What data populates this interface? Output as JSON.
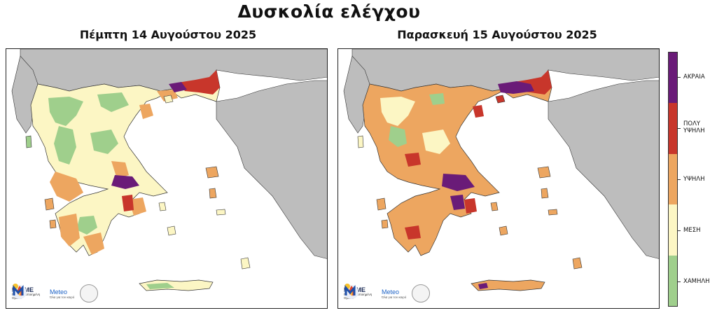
{
  "main_title": "Δυσκολία ελέγχου",
  "maps": [
    {
      "title": "Πέμπτη 14 Αυγούστου 2025"
    },
    {
      "title": "Παρασκευή 15 Αυγούστου 2025"
    }
  ],
  "logos": {
    "flame_name": "FLAME",
    "flame_sub": "Περιφερειοποιημένη Ομάδα",
    "meteo_name": "Meteo",
    "meteo_sub": "Όλα για τον καιρό"
  },
  "legend": {
    "categories": [
      {
        "label": "ΑΚΡΑΙΑ",
        "color": "#6a1b78"
      },
      {
        "label": "ΠΟΛΥ ΥΨΗΛΗ",
        "color": "#c8362b"
      },
      {
        "label": "ΥΨΗΛΗ",
        "color": "#eda660"
      },
      {
        "label": "ΜΕΣΗ",
        "color": "#fcf6c4"
      },
      {
        "label": "ΧΑΜΗΛΗ",
        "color": "#9fcf8c"
      }
    ]
  },
  "colors": {
    "neighbor_land": "#bdbdbd",
    "sea": "#ffffff",
    "low": "#9fcf8c",
    "medium": "#fcf6c4",
    "high": "#eda660",
    "very_high": "#c8362b",
    "extreme": "#6a1b78"
  }
}
